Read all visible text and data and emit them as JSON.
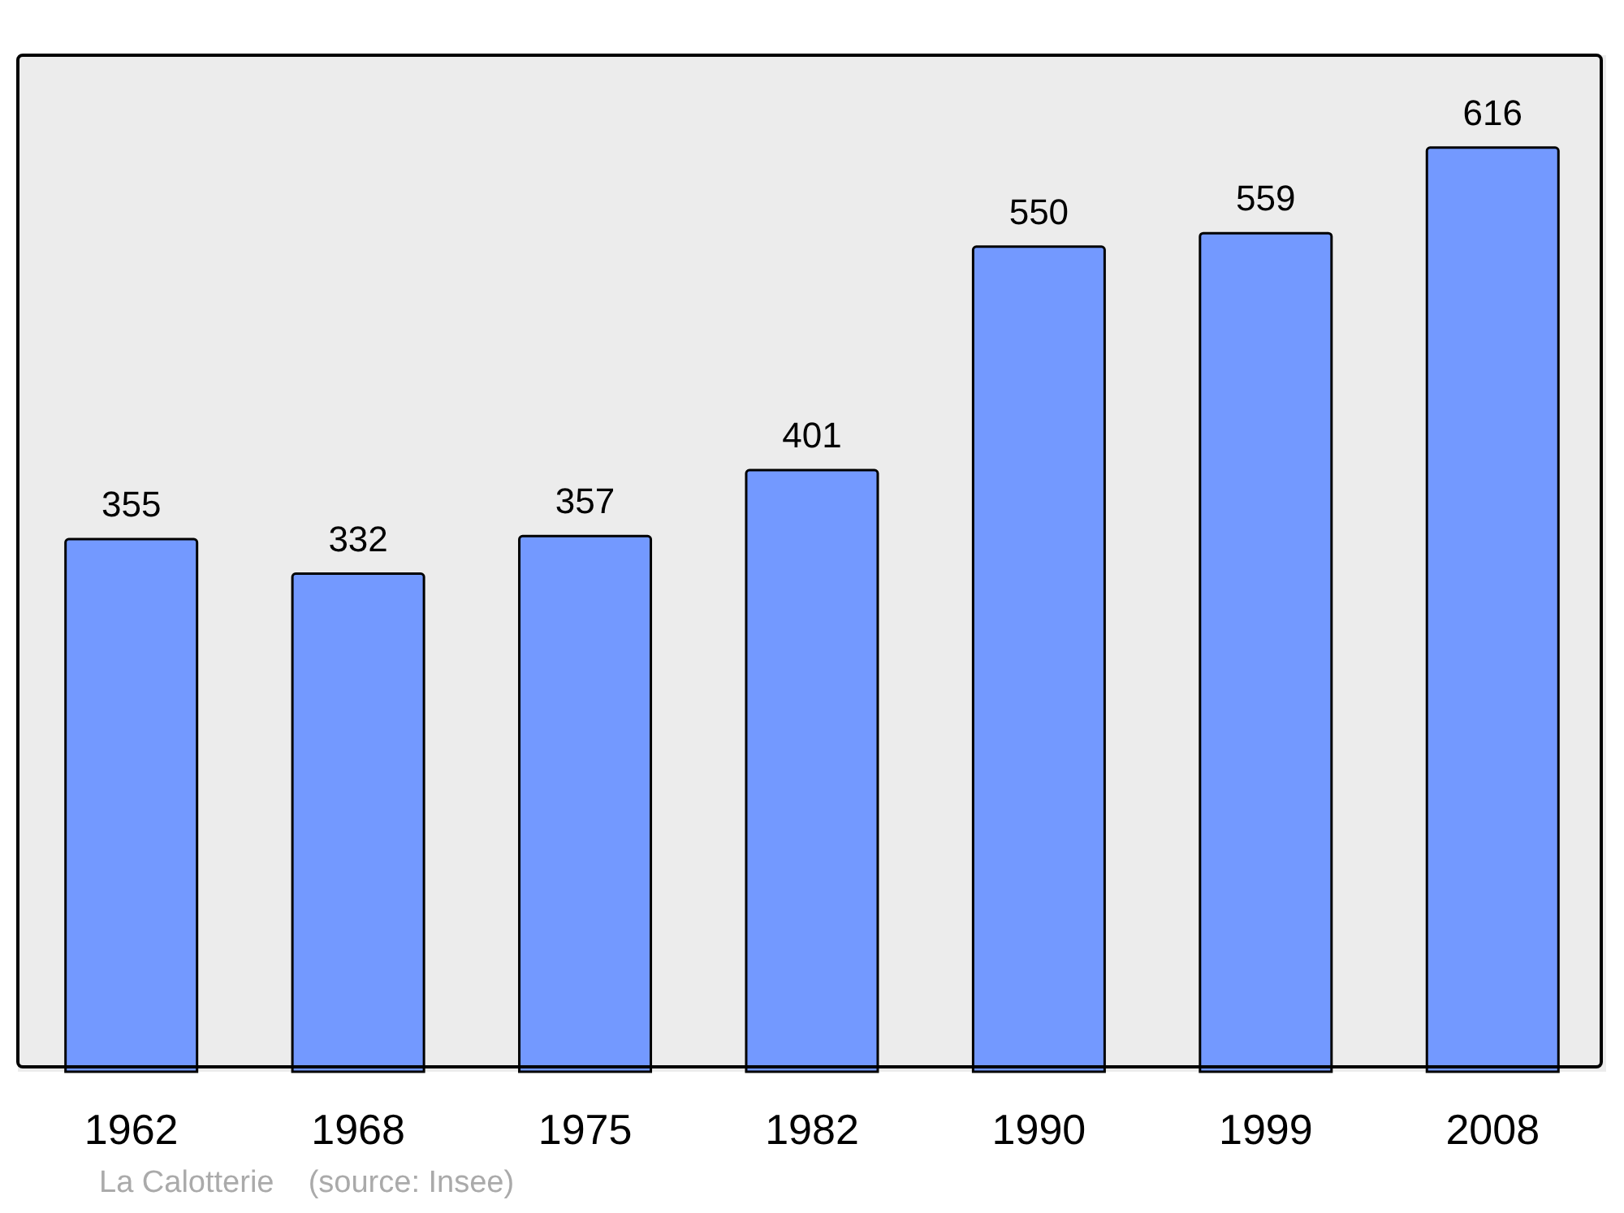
{
  "chart_data": {
    "type": "bar",
    "categories": [
      "1962",
      "1968",
      "1975",
      "1982",
      "1990",
      "1999",
      "2008"
    ],
    "values": [
      355,
      332,
      357,
      401,
      550,
      559,
      616
    ],
    "color": "#7399ff",
    "data_labels": true,
    "annotations": [
      "La Calotterie    (source: Insee)"
    ]
  }
}
